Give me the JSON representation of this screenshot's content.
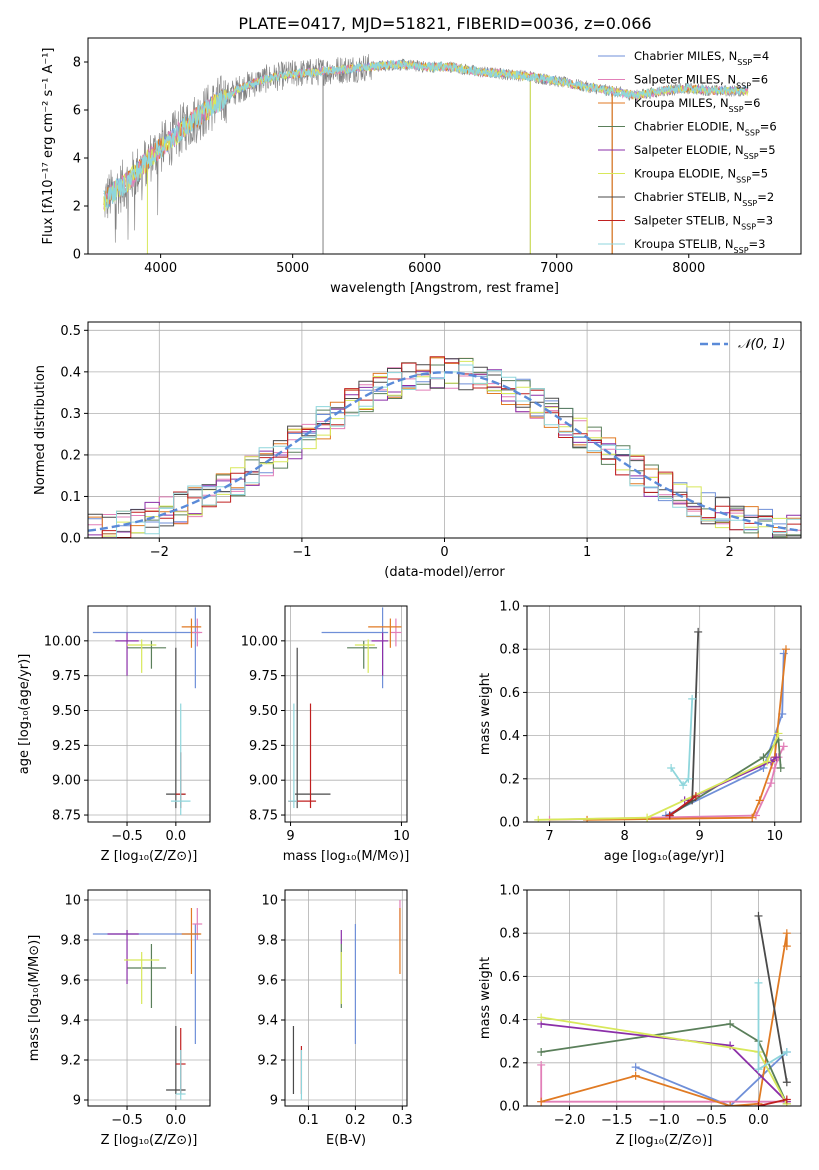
{
  "title": "PLATE=0417, MJD=51821, FIBERID=0036, z=0.066",
  "colors": {
    "Chabrier MILES": "#6f8fd8",
    "Salpeter MILES": "#e27fb8",
    "Kroupa MILES": "#e07a23",
    "Chabrier ELODIE": "#5a7f5a",
    "Salpeter ELODIE": "#8b2fa8",
    "Kroupa ELODIE": "#d8e85a",
    "Chabrier STELIB": "#4a4a4a",
    "Salpeter STELIB": "#c02020",
    "Kroupa STELIB": "#8fd6dc",
    "data": "#808080"
  },
  "chart_data": [
    {
      "type": "line",
      "id": "spectrum",
      "xlabel": "wavelength [Angstrom, rest frame]",
      "ylabel": "Flux [fλ10⁻¹⁷ erg cm⁻² s⁻¹ A⁻¹]",
      "xlim": [
        3450,
        8850
      ],
      "ylim": [
        0,
        9
      ],
      "xticks": [
        4000,
        5000,
        6000,
        7000,
        8000
      ],
      "yticks": [
        0,
        2,
        4,
        6,
        8
      ],
      "legend_position": "top-right",
      "legend": [
        {
          "model": "Chabrier MILES",
          "label": "Chabrier MILES, N_SSP=4"
        },
        {
          "model": "Salpeter MILES",
          "label": "Salpeter MILES, N_SSP=6"
        },
        {
          "model": "Kroupa MILES",
          "label": "Kroupa MILES, N_SSP=6"
        },
        {
          "model": "Chabrier ELODIE",
          "label": "Chabrier ELODIE, N_SSP=6"
        },
        {
          "model": "Salpeter ELODIE",
          "label": "Salpeter ELODIE, N_SSP=5"
        },
        {
          "model": "Kroupa ELODIE",
          "label": "Kroupa ELODIE, N_SSP=5"
        },
        {
          "model": "Chabrier STELIB",
          "label": "Chabrier STELIB, N_SSP=2"
        },
        {
          "model": "Salpeter STELIB",
          "label": "Salpeter STELIB, N_SSP=3"
        },
        {
          "model": "Kroupa STELIB",
          "label": "Kroupa STELIB, N_SSP=3"
        }
      ],
      "model_continuum": {
        "x": [
          3570,
          3650,
          3750,
          3850,
          3950,
          4050,
          4200,
          4400,
          4600,
          4800,
          5000,
          5200,
          5400,
          5600,
          5800,
          6000,
          6200,
          6400,
          6600,
          6800,
          7000,
          7200,
          7400,
          7600,
          7800,
          8000,
          8200,
          8400
        ],
        "y": [
          2.2,
          2.6,
          3.0,
          3.6,
          4.2,
          4.6,
          5.4,
          6.2,
          6.9,
          7.3,
          7.5,
          7.6,
          7.7,
          7.8,
          7.9,
          7.8,
          7.8,
          7.6,
          7.5,
          7.4,
          7.2,
          7.0,
          6.8,
          6.6,
          6.8,
          6.9,
          6.8,
          6.8
        ]
      },
      "spikes": [
        {
          "x": 5230,
          "y": 0
        },
        {
          "x": 6800,
          "y": 0
        },
        {
          "x": 7420,
          "y": 0
        }
      ]
    },
    {
      "type": "bar",
      "id": "residuals",
      "xlabel": "(data-model)/error",
      "ylabel": "Normed distribution",
      "xlim": [
        -2.5,
        2.5
      ],
      "ylim": [
        0,
        0.52
      ],
      "xticks": [
        -2,
        -1,
        0,
        1,
        2
      ],
      "yticks": [
        0.0,
        0.1,
        0.2,
        0.3,
        0.4,
        0.5
      ],
      "legend": "𝒩(0, 1)",
      "legend_position": "top-right",
      "bin_width": 0.1
    },
    {
      "type": "scatter",
      "id": "age-vs-Z",
      "xlabel": "Z [log₁₀(Z/Z⊙)]",
      "ylabel": "age  [log₁₀(age/yr)]",
      "xlim": [
        -0.9,
        0.35
      ],
      "ylim": [
        8.7,
        10.25
      ],
      "xticks": [
        -0.5,
        0.0
      ],
      "xticklabels": [
        "−0.5",
        "0.0"
      ],
      "yticks": [
        8.75,
        9.0,
        9.25,
        9.5,
        9.75,
        10.0
      ],
      "yticklabels": [
        "8.75",
        "9.00",
        "9.25",
        "9.50",
        "9.75",
        "10.00"
      ],
      "points": [
        {
          "model": "Chabrier MILES",
          "x": 0.2,
          "y": 10.06,
          "xerr": [
            1.05,
            0.05
          ],
          "yerr": [
            0.4,
            0.18
          ]
        },
        {
          "model": "Salpeter MILES",
          "x": 0.22,
          "y": 10.06,
          "xerr": [
            0.05,
            0.05
          ],
          "yerr": [
            0.1,
            0.1
          ]
        },
        {
          "model": "Kroupa MILES",
          "x": 0.16,
          "y": 10.1,
          "xerr": [
            0.1,
            0.1
          ],
          "yerr": [
            0.15,
            0.06
          ]
        },
        {
          "model": "Chabrier ELODIE",
          "x": -0.25,
          "y": 9.95,
          "xerr": [
            0.25,
            0.15
          ],
          "yerr": [
            0.15,
            0.05
          ]
        },
        {
          "model": "Salpeter ELODIE",
          "x": -0.5,
          "y": 10.0,
          "xerr": [
            0.12,
            0.12
          ],
          "yerr": [
            0.25,
            0.06
          ]
        },
        {
          "model": "Kroupa ELODIE",
          "x": -0.35,
          "y": 9.97,
          "xerr": [
            0.15,
            0.15
          ],
          "yerr": [
            0.2,
            0.04
          ]
        },
        {
          "model": "Chabrier STELIB",
          "x": 0.0,
          "y": 8.9,
          "xerr": [
            0.1,
            0.1
          ],
          "yerr": [
            0.1,
            1.05
          ]
        },
        {
          "model": "Salpeter STELIB",
          "x": 0.05,
          "y": 8.9,
          "xerr": [
            0.05,
            0.05
          ],
          "yerr": [
            0.1,
            0.3
          ]
        },
        {
          "model": "Kroupa STELIB",
          "x": 0.05,
          "y": 8.85,
          "xerr": [
            0.1,
            0.1
          ],
          "yerr": [
            0.1,
            0.7
          ]
        }
      ]
    },
    {
      "type": "scatter",
      "id": "age-vs-mass",
      "xlabel": "mass [log₁₀(M/M⊙)]",
      "xlim": [
        8.95,
        10.05
      ],
      "ylim": [
        8.7,
        10.25
      ],
      "xticks": [
        9,
        10
      ],
      "yticks": [
        8.75,
        9.0,
        9.25,
        9.5,
        9.75,
        10.0
      ],
      "yticklabels": [
        "8.75",
        "9.00",
        "9.25",
        "9.50",
        "9.75",
        "10.00"
      ],
      "points": [
        {
          "model": "Chabrier MILES",
          "x": 9.83,
          "y": 10.06,
          "xerr": [
            0.55,
            0.05
          ],
          "yerr": [
            0.4,
            0.18
          ]
        },
        {
          "model": "Salpeter MILES",
          "x": 9.95,
          "y": 10.06,
          "xerr": [
            0.05,
            0.05
          ],
          "yerr": [
            0.1,
            0.1
          ]
        },
        {
          "model": "Kroupa MILES",
          "x": 9.9,
          "y": 10.1,
          "xerr": [
            0.2,
            0.1
          ],
          "yerr": [
            0.15,
            0.06
          ]
        },
        {
          "model": "Chabrier ELODIE",
          "x": 9.66,
          "y": 9.95,
          "xerr": [
            0.15,
            0.12
          ],
          "yerr": [
            0.15,
            0.05
          ]
        },
        {
          "model": "Salpeter ELODIE",
          "x": 9.83,
          "y": 10.0,
          "xerr": [
            0.1,
            0.05
          ],
          "yerr": [
            0.25,
            0.06
          ]
        },
        {
          "model": "Kroupa ELODIE",
          "x": 9.7,
          "y": 9.97,
          "xerr": [
            0.12,
            0.06
          ],
          "yerr": [
            0.2,
            0.04
          ]
        },
        {
          "model": "Chabrier STELIB",
          "x": 9.06,
          "y": 8.9,
          "xerr": [
            0.02,
            0.3
          ],
          "yerr": [
            0.1,
            1.05
          ]
        },
        {
          "model": "Salpeter STELIB",
          "x": 9.18,
          "y": 8.85,
          "xerr": [
            0.2,
            0.05
          ],
          "yerr": [
            0.05,
            0.7
          ]
        },
        {
          "model": "Kroupa STELIB",
          "x": 9.03,
          "y": 8.85,
          "xerr": [
            0.05,
            0.03
          ],
          "yerr": [
            0.05,
            0.7
          ]
        }
      ]
    },
    {
      "type": "line",
      "id": "weight-vs-age",
      "xlabel": "age  [log₁₀(age/yr)]",
      "ylabel": "mass weight",
      "xlim": [
        6.7,
        10.35
      ],
      "ylim": [
        0,
        1.0
      ],
      "xticks": [
        7,
        8,
        9,
        10
      ],
      "yticks": [
        0.0,
        0.2,
        0.4,
        0.6,
        0.8,
        1.0
      ],
      "series": [
        {
          "model": "Chabrier MILES",
          "x": [
            8.55,
            9.85,
            10.1,
            10.12
          ],
          "y": [
            0.03,
            0.25,
            0.5,
            0.78
          ]
        },
        {
          "model": "Salpeter MILES",
          "x": [
            7.0,
            9.75,
            9.95,
            10.0,
            10.05,
            10.12
          ],
          "y": [
            0.01,
            0.03,
            0.18,
            0.25,
            0.3,
            0.35
          ]
        },
        {
          "model": "Kroupa MILES",
          "x": [
            7.5,
            9.7,
            9.8,
            10.0,
            10.15
          ],
          "y": [
            0.01,
            0.02,
            0.1,
            0.3,
            0.8
          ]
        },
        {
          "model": "Chabrier ELODIE",
          "x": [
            8.6,
            9.85,
            10.05,
            10.08
          ],
          "y": [
            0.03,
            0.3,
            0.38,
            0.25
          ]
        },
        {
          "model": "Salpeter ELODIE",
          "x": [
            8.8,
            9.95,
            10.02
          ],
          "y": [
            0.1,
            0.28,
            0.3
          ]
        },
        {
          "model": "Kroupa ELODIE",
          "x": [
            6.85,
            8.3,
            9.9,
            10.05
          ],
          "y": [
            0.01,
            0.02,
            0.28,
            0.41
          ]
        },
        {
          "model": "Chabrier STELIB",
          "x": [
            8.6,
            8.9,
            8.98
          ],
          "y": [
            0.03,
            0.1,
            0.88
          ]
        },
        {
          "model": "Salpeter STELIB",
          "x": [
            8.6,
            8.95
          ],
          "y": [
            0.03,
            0.12
          ]
        },
        {
          "model": "Kroupa STELIB",
          "x": [
            8.62,
            8.78,
            8.85,
            8.9
          ],
          "y": [
            0.25,
            0.17,
            0.2,
            0.57
          ]
        }
      ]
    },
    {
      "type": "scatter",
      "id": "mass-vs-Z",
      "xlabel": "Z [log₁₀(Z/Z⊙)]",
      "ylabel": "mass [log₁₀(M/M⊙)]",
      "xlim": [
        -0.9,
        0.35
      ],
      "ylim": [
        8.97,
        10.05
      ],
      "xticks": [
        -0.5,
        0.0
      ],
      "xticklabels": [
        "−0.5",
        "0.0"
      ],
      "yticks": [
        9.0,
        9.2,
        9.4,
        9.6,
        9.8,
        10.0
      ],
      "points": [
        {
          "model": "Chabrier MILES",
          "x": 0.2,
          "y": 9.83,
          "xerr": [
            1.05,
            0.05
          ],
          "yerr": [
            0.55,
            0.05
          ]
        },
        {
          "model": "Salpeter MILES",
          "x": 0.22,
          "y": 9.88,
          "xerr": [
            0.05,
            0.05
          ],
          "yerr": [
            0.08,
            0.08
          ]
        },
        {
          "model": "Kroupa MILES",
          "x": 0.16,
          "y": 9.83,
          "xerr": [
            0.1,
            0.1
          ],
          "yerr": [
            0.2,
            0.13
          ]
        },
        {
          "model": "Chabrier ELODIE",
          "x": -0.25,
          "y": 9.66,
          "xerr": [
            0.25,
            0.15
          ],
          "yerr": [
            0.2,
            0.12
          ]
        },
        {
          "model": "Salpeter ELODIE",
          "x": -0.5,
          "y": 9.83,
          "xerr": [
            0.2,
            0.12
          ],
          "yerr": [
            0.25,
            0.02
          ]
        },
        {
          "model": "Kroupa ELODIE",
          "x": -0.35,
          "y": 9.7,
          "xerr": [
            0.18,
            0.18
          ],
          "yerr": [
            0.22,
            0.04
          ]
        },
        {
          "model": "Chabrier STELIB",
          "x": 0.0,
          "y": 9.05,
          "xerr": [
            0.1,
            0.1
          ],
          "yerr": [
            0.02,
            0.32
          ]
        },
        {
          "model": "Salpeter STELIB",
          "x": 0.05,
          "y": 9.18,
          "xerr": [
            0.05,
            0.05
          ],
          "yerr": [
            0.15,
            0.18
          ]
        },
        {
          "model": "Kroupa STELIB",
          "x": 0.05,
          "y": 9.03,
          "xerr": [
            0.05,
            0.05
          ],
          "yerr": [
            0.03,
            0.22
          ]
        }
      ]
    },
    {
      "type": "scatter",
      "id": "mass-vs-EBV",
      "xlabel": "E(B-V)",
      "xlim": [
        0.05,
        0.31
      ],
      "ylim": [
        8.97,
        10.05
      ],
      "xticks": [
        0.1,
        0.2,
        0.3
      ],
      "yticks": [
        9.0,
        9.2,
        9.4,
        9.6,
        9.8,
        10.0
      ],
      "points": [
        {
          "model": "Chabrier MILES",
          "x": 0.2,
          "y": 9.83,
          "yerr": [
            0.55,
            0.05
          ]
        },
        {
          "model": "Salpeter MILES",
          "x": 0.295,
          "y": 9.88,
          "yerr": [
            0.08,
            0.12
          ]
        },
        {
          "model": "Kroupa MILES",
          "x": 0.295,
          "y": 9.83,
          "yerr": [
            0.2,
            0.13
          ]
        },
        {
          "model": "Chabrier ELODIE",
          "x": 0.17,
          "y": 9.66,
          "yerr": [
            0.2,
            0.12
          ]
        },
        {
          "model": "Salpeter ELODIE",
          "x": 0.17,
          "y": 9.83,
          "yerr": [
            0.05,
            0.02
          ]
        },
        {
          "model": "Kroupa ELODIE",
          "x": 0.17,
          "y": 9.7,
          "yerr": [
            0.22,
            0.04
          ]
        },
        {
          "model": "Chabrier STELIB",
          "x": 0.068,
          "y": 9.05,
          "yerr": [
            0.02,
            0.32
          ]
        },
        {
          "model": "Salpeter STELIB",
          "x": 0.085,
          "y": 9.18,
          "yerr": [
            0.15,
            0.09
          ]
        },
        {
          "model": "Kroupa STELIB",
          "x": 0.085,
          "y": 9.03,
          "yerr": [
            0.03,
            0.22
          ]
        }
      ]
    },
    {
      "type": "line",
      "id": "weight-vs-Z",
      "xlabel": "Z [log₁₀(Z/Z⊙)]",
      "ylabel": "mass weight",
      "xlim": [
        -2.45,
        0.45
      ],
      "ylim": [
        0,
        1.0
      ],
      "xticks": [
        -2.0,
        -1.5,
        -1.0,
        -0.5,
        0.0
      ],
      "xticklabels": [
        "−2.0",
        "−1.5",
        "−1.0",
        "−0.5",
        "0.0"
      ],
      "yticks": [
        0.0,
        0.2,
        0.4,
        0.6,
        0.8,
        1.0
      ],
      "series": [
        {
          "model": "Chabrier MILES",
          "x": [
            -1.3,
            -0.3,
            0.3
          ],
          "y": [
            0.18,
            0.0,
            0.25
          ]
        },
        {
          "model": "Salpeter MILES",
          "x": [
            -2.3,
            -2.3,
            0.3
          ],
          "y": [
            0.19,
            0.02,
            0.02
          ]
        },
        {
          "model": "Kroupa MILES",
          "x": [
            -2.3,
            -1.3,
            -0.3,
            0.0,
            0.3,
            0.3
          ],
          "y": [
            0.02,
            0.14,
            0.0,
            0.01,
            0.8,
            0.74
          ]
        },
        {
          "model": "Chabrier ELODIE",
          "x": [
            -2.3,
            -0.3,
            0.0,
            0.3
          ],
          "y": [
            0.25,
            0.38,
            0.3,
            0.01
          ]
        },
        {
          "model": "Salpeter ELODIE",
          "x": [
            -2.3,
            -0.3,
            0.3
          ],
          "y": [
            0.38,
            0.28,
            0.02
          ]
        },
        {
          "model": "Kroupa ELODIE",
          "x": [
            -2.3,
            0.0,
            0.3
          ],
          "y": [
            0.41,
            0.25,
            0.01
          ]
        },
        {
          "model": "Chabrier STELIB",
          "x": [
            0.0,
            0.3
          ],
          "y": [
            0.88,
            0.11
          ]
        },
        {
          "model": "Salpeter STELIB",
          "x": [
            0.0,
            0.3
          ],
          "y": [
            0.0,
            0.03
          ]
        },
        {
          "model": "Kroupa STELIB",
          "x": [
            0.0,
            0.0,
            0.3
          ],
          "y": [
            0.57,
            0.17,
            0.25
          ]
        }
      ]
    }
  ]
}
